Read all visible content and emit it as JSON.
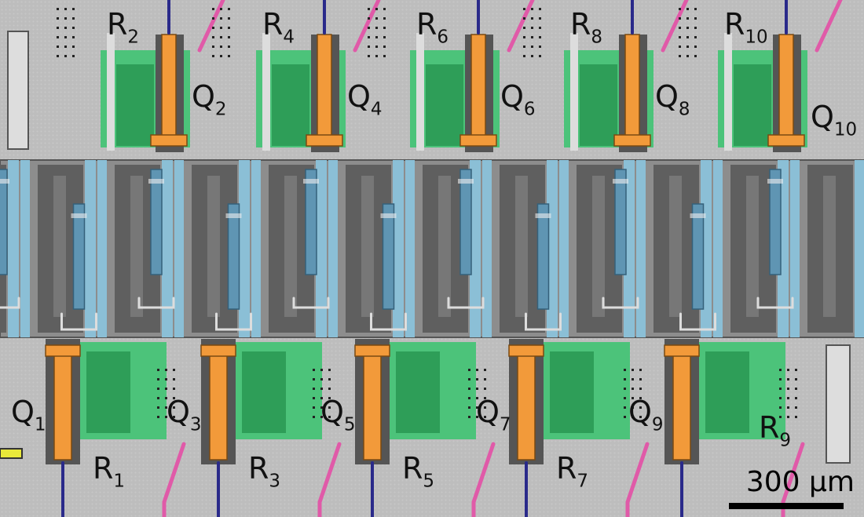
{
  "image": {
    "description_labels": {
      "qubits_top": [
        "2",
        "4",
        "6",
        "8",
        "10"
      ],
      "qubits_bottom": [
        "1",
        "3",
        "5",
        "7",
        "9"
      ],
      "resonators_top": [
        "2",
        "4",
        "6",
        "8",
        "10"
      ],
      "resonators_bottom": [
        "1",
        "3",
        "5",
        "7",
        "9"
      ],
      "qubit_prefix": "Q",
      "resonator_prefix": "R"
    },
    "scale_bar": "300 µm",
    "colors": {
      "qubit": "#f29a3a",
      "resonator": "#2e9e58",
      "resonator_light": "#4cc37a",
      "coupler": "#8bbfd6",
      "coupler_dark": "#5f95b3",
      "metal_dark": "#5f5f5f",
      "flux_line": "#e05aa8",
      "drive_line": "#2a2a8a",
      "yellow_pad": "#e8e83a"
    }
  }
}
